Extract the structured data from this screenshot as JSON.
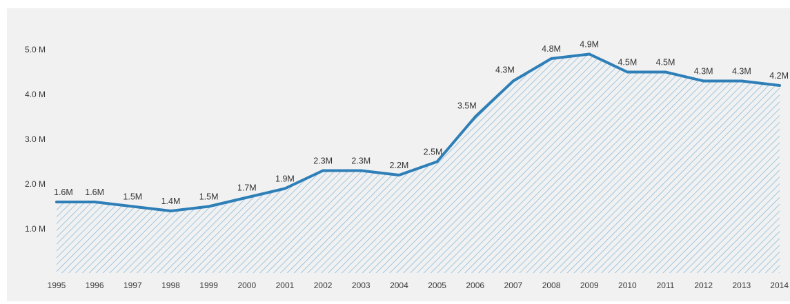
{
  "chart_data": {
    "type": "area",
    "x": [
      "1995",
      "1996",
      "1997",
      "1998",
      "1999",
      "2000",
      "2001",
      "2002",
      "2003",
      "2004",
      "2005",
      "2006",
      "2007",
      "2008",
      "2009",
      "2010",
      "2011",
      "2012",
      "2013",
      "2014"
    ],
    "values": [
      1.6,
      1.6,
      1.5,
      1.4,
      1.5,
      1.7,
      1.9,
      2.3,
      2.3,
      2.2,
      2.5,
      3.5,
      4.3,
      4.8,
      4.9,
      4.5,
      4.5,
      4.3,
      4.3,
      4.2
    ],
    "data_labels": [
      "1.6M",
      "1.6M",
      "1.5M",
      "1.4M",
      "1.5M",
      "1.7M",
      "1.9M",
      "2.3M",
      "2.3M",
      "2.2M",
      "2.5M",
      "3.5M",
      "4.3M",
      "4.8M",
      "4.9M",
      "4.5M",
      "4.5M",
      "4.3M",
      "4.3M",
      "4.2M"
    ],
    "yticks": [
      1.0,
      2.0,
      3.0,
      4.0,
      5.0
    ],
    "ytick_labels": [
      "1.0 M",
      "2.0 M",
      "3.0 M",
      "4.0 M",
      "5.0 M"
    ],
    "ylim": [
      0,
      5.4
    ],
    "grid": false,
    "legend": false,
    "colors": {
      "line": "#2e7fb8",
      "hatch": "#8bbcdc",
      "background": "#f1f1f1"
    }
  }
}
